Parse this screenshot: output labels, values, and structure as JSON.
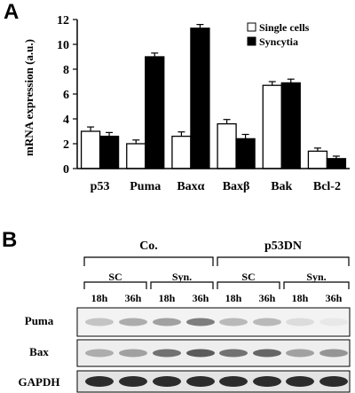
{
  "panel_a_letter": "A",
  "panel_b_letter": "B",
  "chart_data": {
    "type": "bar",
    "categories": [
      "p53",
      "Puma",
      "Baxα",
      "Baxβ",
      "Bak",
      "Bcl-2"
    ],
    "series": [
      {
        "name": "Single cells",
        "values": [
          3.0,
          2.0,
          2.6,
          3.6,
          6.7,
          1.4
        ],
        "errors": [
          0.35,
          0.3,
          0.35,
          0.35,
          0.3,
          0.25
        ],
        "color": "#ffffff"
      },
      {
        "name": "Syncytia",
        "values": [
          2.6,
          9.0,
          11.3,
          2.4,
          6.9,
          0.8
        ],
        "errors": [
          0.3,
          0.3,
          0.3,
          0.35,
          0.3,
          0.2
        ],
        "color": "#000000"
      }
    ],
    "ylabel": "mRNA expression (a.u.)",
    "xlabel": "",
    "ylim": [
      0,
      12
    ],
    "yticks": [
      0,
      2,
      4,
      6,
      8,
      10,
      12
    ],
    "legend_placement": "top-right",
    "grid": false
  },
  "blot": {
    "groups": [
      "Co.",
      "p53DN"
    ],
    "conditions": [
      "SC",
      "Syn.",
      "SC",
      "Syn."
    ],
    "timepoints": [
      "18h",
      "36h",
      "18h",
      "36h",
      "18h",
      "36h",
      "18h",
      "36h"
    ],
    "rows": [
      {
        "label": "Puma",
        "intensities": [
          0.25,
          0.35,
          0.4,
          0.55,
          0.3,
          0.3,
          0.15,
          0.1
        ]
      },
      {
        "label": "Bax",
        "intensities": [
          0.35,
          0.4,
          0.6,
          0.7,
          0.6,
          0.65,
          0.4,
          0.45
        ]
      },
      {
        "label": "GAPDH",
        "intensities": [
          0.9,
          0.9,
          0.9,
          0.9,
          0.9,
          0.9,
          0.9,
          0.9
        ]
      }
    ]
  }
}
